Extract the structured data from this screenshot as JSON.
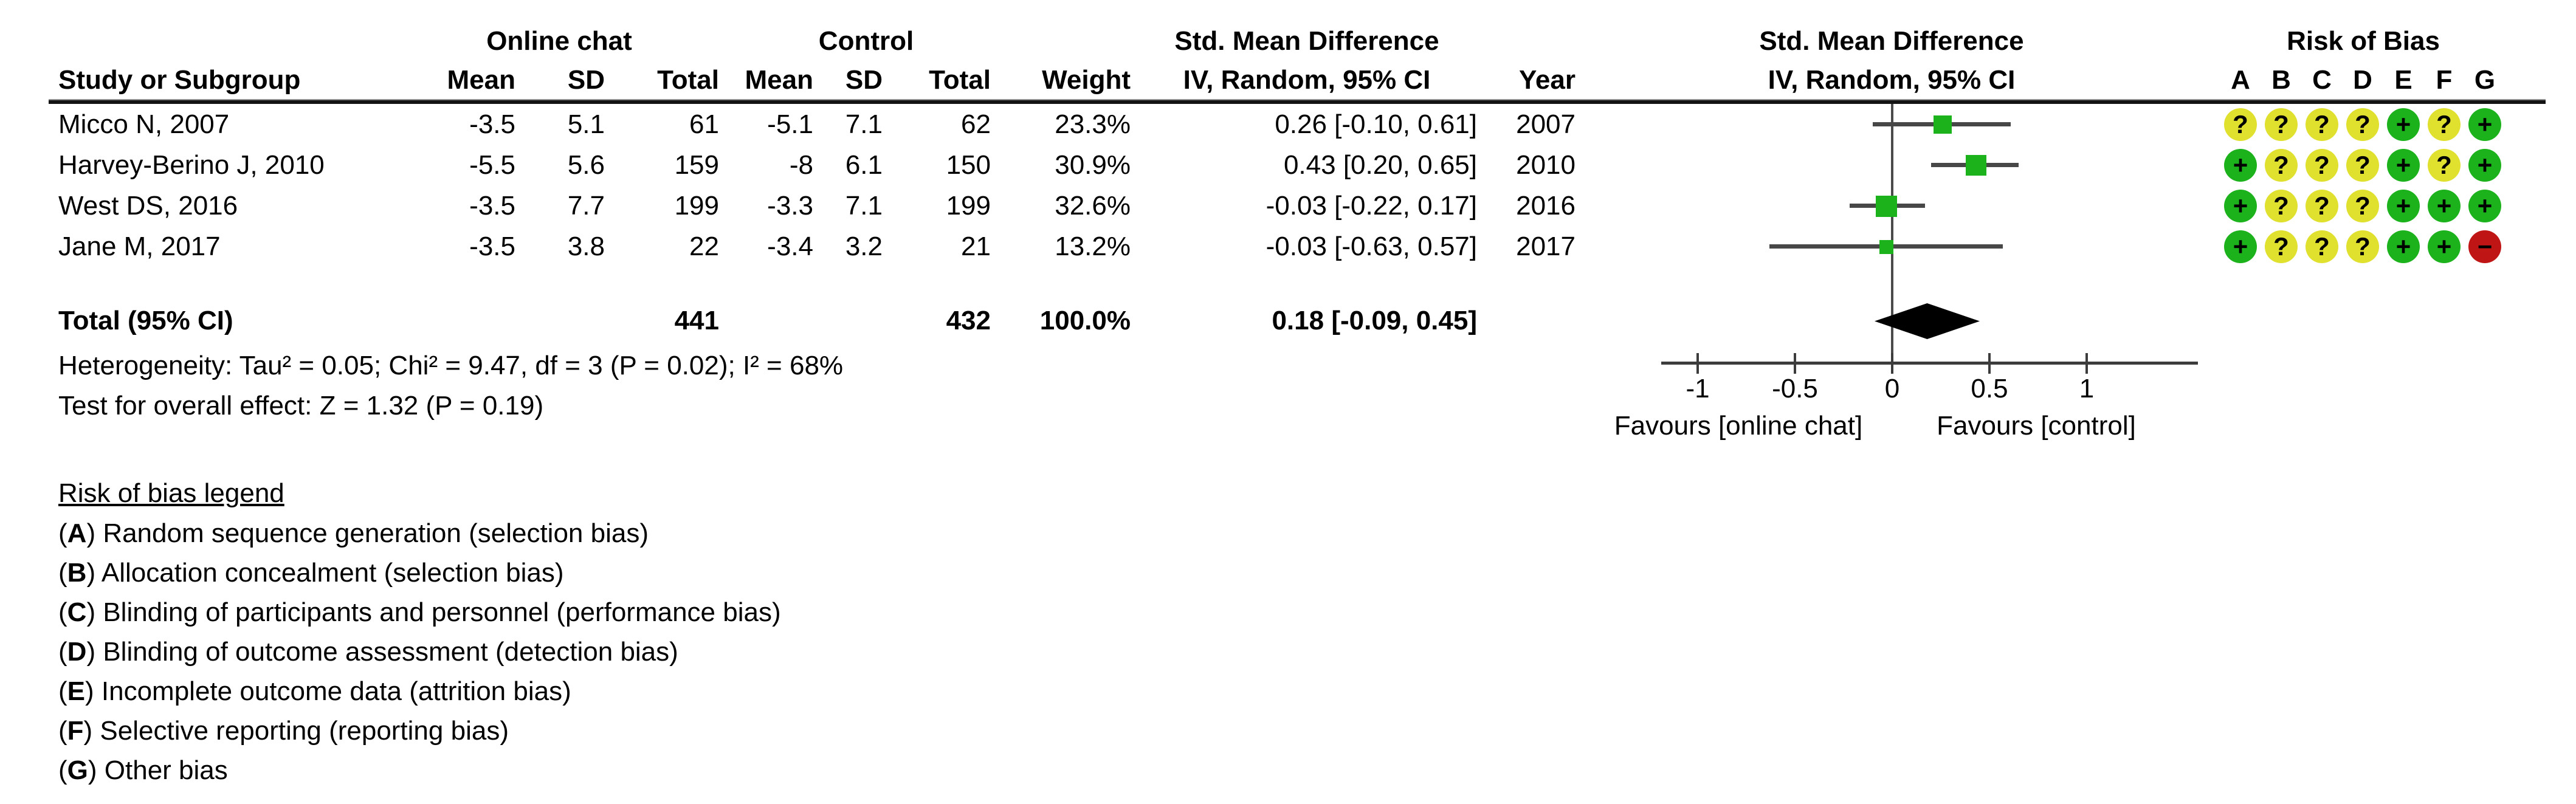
{
  "header": {
    "study_col": "Study or Subgroup",
    "group1": "Online chat",
    "group2": "Control",
    "mean": "Mean",
    "sd": "SD",
    "total": "Total",
    "weight": "Weight",
    "effect_title": "Std. Mean Difference",
    "effect_method": "IV, Random, 95% CI",
    "year": "Year",
    "risk_of_bias": "Risk of Bias",
    "bias_letters": [
      "A",
      "B",
      "C",
      "D",
      "E",
      "F",
      "G"
    ]
  },
  "chart_data": {
    "type": "forest",
    "effect_measure": "Std. Mean Difference",
    "method": "IV, Random, 95% CI",
    "studies": [
      {
        "name": "Micco N, 2007",
        "exp_mean": -3.5,
        "exp_sd": 5.1,
        "exp_total": 61,
        "ctrl_mean": -5.1,
        "ctrl_sd": 7.1,
        "ctrl_total": 62,
        "weight": "23.3%",
        "weight_pct": 23.3,
        "effect": 0.26,
        "ci_low": -0.1,
        "ci_high": 0.61,
        "ci_text": "0.26 [-0.10, 0.61]",
        "year": "2007",
        "bias": [
          "?",
          "?",
          "?",
          "?",
          "+",
          "?",
          "+"
        ]
      },
      {
        "name": "Harvey-Berino J, 2010",
        "exp_mean": -5.5,
        "exp_sd": 5.6,
        "exp_total": 159,
        "ctrl_mean": -8,
        "ctrl_sd": 6.1,
        "ctrl_total": 150,
        "weight": "30.9%",
        "weight_pct": 30.9,
        "effect": 0.43,
        "ci_low": 0.2,
        "ci_high": 0.65,
        "ci_text": "0.43 [0.20, 0.65]",
        "year": "2010",
        "bias": [
          "+",
          "?",
          "?",
          "?",
          "+",
          "?",
          "+"
        ]
      },
      {
        "name": "West DS, 2016",
        "exp_mean": -3.5,
        "exp_sd": 7.7,
        "exp_total": 199,
        "ctrl_mean": -3.3,
        "ctrl_sd": 7.1,
        "ctrl_total": 199,
        "weight": "32.6%",
        "weight_pct": 32.6,
        "effect": -0.03,
        "ci_low": -0.22,
        "ci_high": 0.17,
        "ci_text": "-0.03 [-0.22, 0.17]",
        "year": "2016",
        "bias": [
          "+",
          "?",
          "?",
          "?",
          "+",
          "+",
          "+"
        ]
      },
      {
        "name": "Jane M, 2017",
        "exp_mean": -3.5,
        "exp_sd": 3.8,
        "exp_total": 22,
        "ctrl_mean": -3.4,
        "ctrl_sd": 3.2,
        "ctrl_total": 21,
        "weight": "13.2%",
        "weight_pct": 13.2,
        "effect": -0.03,
        "ci_low": -0.63,
        "ci_high": 0.57,
        "ci_text": "-0.03 [-0.63, 0.57]",
        "year": "2017",
        "bias": [
          "+",
          "?",
          "?",
          "?",
          "+",
          "+",
          "-"
        ]
      }
    ],
    "total": {
      "label": "Total (95% CI)",
      "exp_total": 441,
      "ctrl_total": 432,
      "weight": "100.0%",
      "effect": 0.18,
      "ci_low": -0.09,
      "ci_high": 0.45,
      "ci_text": "0.18 [-0.09, 0.45]"
    },
    "heterogeneity": "Heterogeneity: Tau² = 0.05; Chi² = 9.47, df = 3 (P = 0.02); I² = 68%",
    "overall_effect": "Test for overall effect: Z = 1.32 (P = 0.19)",
    "x_axis": {
      "ticks": [
        -1,
        -0.5,
        0,
        0.5,
        1
      ],
      "favours_left": "Favours [online chat]",
      "favours_right": "Favours [control]"
    }
  },
  "legend": {
    "title": "Risk of bias legend",
    "items": [
      {
        "letter": "A",
        "text": "Random sequence generation (selection bias)"
      },
      {
        "letter": "B",
        "text": "Allocation concealment (selection bias)"
      },
      {
        "letter": "C",
        "text": "Blinding of participants and personnel (performance bias)"
      },
      {
        "letter": "D",
        "text": "Blinding of outcome assessment (detection bias)"
      },
      {
        "letter": "E",
        "text": "Incomplete outcome data (attrition bias)"
      },
      {
        "letter": "F",
        "text": "Selective reporting (reporting bias)"
      },
      {
        "letter": "G",
        "text": "Other bias"
      }
    ]
  },
  "colors": {
    "low_risk": "#1BB21B",
    "unclear_risk": "#E0E02E",
    "high_risk": "#C01515",
    "marker_green": "#1BB21B",
    "ci_line": "#474747",
    "diamond": "#000000"
  }
}
